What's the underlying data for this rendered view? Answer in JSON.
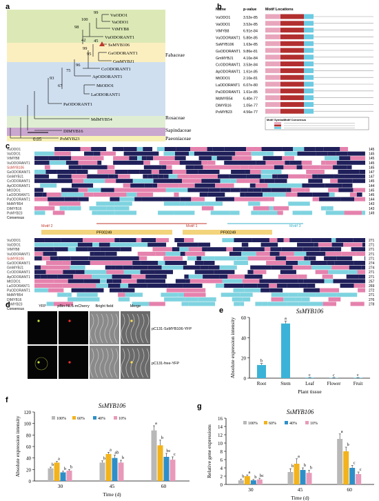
{
  "panels": {
    "a": "a",
    "b": "b",
    "c": "c",
    "d": "d",
    "e": "e",
    "f": "f",
    "g": "g"
  },
  "tree": {
    "leaves": [
      "VuODO1",
      "VaODO1",
      "VtMYB8",
      "VuODORANT1",
      "SsMYB106",
      "GsODORANT1",
      "GmMYBJ1",
      "CcODORANT1",
      "ApODORANT1",
      "MtODO1",
      "LaODORANT1",
      "PaODORANT1",
      "MdMYB54",
      "DIMYB16",
      "PoMYB23"
    ],
    "bootstrap": [
      "99",
      "100",
      "98",
      "42",
      "45",
      "99",
      "95",
      "96",
      "75",
      "93",
      "67"
    ],
    "families": [
      "Fabaceae",
      "Rosaceae",
      "Sapindaceae",
      "Paeoniaceae"
    ],
    "scale": "0.05",
    "colors": {
      "fabaceae_green": "#dce9b6",
      "fabaceae_yellow": "#fbefc0",
      "fabaceae_blue": "#cfdff0",
      "rosaceae": "#dfeed2",
      "sapindaceae": "#c9a7cf",
      "paeoniaceae": "#f7f1b6",
      "highlight": "#c0392b"
    }
  },
  "motifs": {
    "headers": [
      "Name",
      "p-value",
      "Motif Locations"
    ],
    "rows": [
      {
        "name": "VuODO1",
        "p": "3.52e-85"
      },
      {
        "name": "VaODO1",
        "p": "3.52e-85"
      },
      {
        "name": "VtMYB8",
        "p": "6.91e-84"
      },
      {
        "name": "VuODORANT1",
        "p": "5.80e-85"
      },
      {
        "name": "SsMYB106",
        "p": "1.63e-85"
      },
      {
        "name": "GsODORANT1",
        "p": "9.86e-81"
      },
      {
        "name": "GmMYBJ1",
        "p": "4.10e-84"
      },
      {
        "name": "CcODORANT1",
        "p": "3.53e-84"
      },
      {
        "name": "ApODORANT1",
        "p": "1.61e-85"
      },
      {
        "name": "MtODO1",
        "p": "2.10e-81"
      },
      {
        "name": "LaODORANT1",
        "p": "6.07e-80"
      },
      {
        "name": "PaODORANT1",
        "p": "1.61e-85"
      },
      {
        "name": "MdMYB54",
        "p": "6.40e-77"
      },
      {
        "name": "DIMYB16",
        "p": "1.05e-77"
      },
      {
        "name": "PoMYB23",
        "p": "4.56e-77"
      }
    ],
    "legend_headers": [
      "Motif",
      "Symbol",
      "Motif Consensus"
    ],
    "colors": {
      "motif1": "#e8a6bd",
      "motif2": "#b22f2f",
      "motif3": "#6ccbe3"
    }
  },
  "alignment": {
    "names": [
      "VuODO1",
      "VaODO1",
      "VtMYB8",
      "VuODORANT1",
      "SsMYB106",
      "GsODORANT1",
      "GmMYBJ1",
      "CcODORANT1",
      "ApODORANT1",
      "MtODO1",
      "LaODORANT1",
      "PaODORANT1",
      "MdMYB54",
      "DIMYB16",
      "PoMYB23",
      "Consensus"
    ],
    "numbers_top": [
      "145",
      "145",
      "145",
      "145",
      "145",
      "147",
      "147",
      "145",
      "144",
      "145",
      "145",
      "144",
      "143",
      "143",
      "149"
    ],
    "numbers_bottom": [
      "271",
      "271",
      "271",
      "271",
      "271",
      "274",
      "274",
      "271",
      "271",
      "257",
      "269",
      "272",
      "271",
      "276",
      "278"
    ],
    "labels_top": [
      "Motif 2",
      "Motif 1",
      "Motif 3"
    ],
    "labels_bottom": [
      "Motif 1",
      "Motif 2"
    ],
    "domains": [
      "PF00249",
      "PF00249"
    ],
    "colors": {
      "navy": "#1f1f5a",
      "pink": "#e582ad",
      "cyan": "#7fd3e0"
    }
  },
  "subcell": {
    "headers": [
      "YFP",
      "pBin-NLS-mCherry",
      "Bright field",
      "Merge"
    ],
    "rows": [
      "pC131-SsMYB106-YFP",
      "pC131-free-YFP"
    ]
  },
  "chart_e": {
    "title": "SsMYB106",
    "ylabel": "Absolute expression intensity",
    "xlabel": "Plant tissue"
  },
  "chart_f": {
    "title": "SsMYB106",
    "ylabel": "Absolute expression intensity",
    "xlabel": "Time (d)"
  },
  "chart_g": {
    "title": "SsMYB106",
    "ylabel": "Relative gene expressions",
    "xlabel": "Time (d)"
  },
  "chart_data": [
    {
      "type": "bar",
      "title": "SsMYB106",
      "xlabel": "Plant tissue",
      "ylabel": "Absolute expression intensity",
      "categories": [
        "Root",
        "Stem",
        "Leaf",
        "Flower",
        "Fruit"
      ],
      "values": [
        13,
        54,
        0.5,
        0.3,
        0.4
      ],
      "errors": [
        1.5,
        2.5,
        0.2,
        0.2,
        0.2
      ],
      "letters": [
        "b",
        "a",
        "c",
        "c",
        "c"
      ],
      "ylim": [
        0,
        60
      ],
      "yticks": [
        0,
        20,
        40,
        60
      ],
      "color": "#3bb3d8"
    },
    {
      "type": "bar",
      "title": "SsMYB106",
      "xlabel": "Time (d)",
      "ylabel": "Absolute expression intensity",
      "categories": [
        "30",
        "45",
        "60"
      ],
      "series": [
        {
          "name": "100%",
          "values": [
            22,
            32,
            88
          ],
          "letters": [
            "b",
            "b",
            "a"
          ],
          "errors": [
            2,
            3,
            8
          ]
        },
        {
          "name": "60%",
          "values": [
            32,
            47,
            62
          ],
          "letters": [
            "a",
            "a",
            "b"
          ],
          "errors": [
            2,
            3,
            9
          ]
        },
        {
          "name": "40%",
          "values": [
            15,
            40,
            42
          ],
          "letters": [
            "b",
            "ab",
            "bc"
          ],
          "errors": [
            2,
            5,
            6
          ]
        },
        {
          "name": "10%",
          "values": [
            18,
            32,
            37
          ],
          "letters": [
            "b",
            "b",
            "c"
          ],
          "errors": [
            2,
            4,
            5
          ]
        }
      ],
      "ylim": [
        0,
        120
      ],
      "yticks": [
        0,
        20,
        40,
        60,
        80,
        100,
        120
      ],
      "colors": [
        "#b8b8b8",
        "#f2b31c",
        "#2e8fc8",
        "#e89ab8"
      ]
    },
    {
      "type": "bar",
      "title": "SsMYB106",
      "xlabel": "Time (d)",
      "ylabel": "Relative gene expressions",
      "categories": [
        "30",
        "45",
        "60"
      ],
      "series": [
        {
          "name": "100%",
          "values": [
            1,
            3,
            11
          ],
          "letters": [
            "b",
            "b",
            "a"
          ],
          "errors": [
            0.3,
            0.8,
            1.2
          ]
        },
        {
          "name": "60%",
          "values": [
            2,
            5,
            8
          ],
          "letters": [
            "a",
            "a",
            "b"
          ],
          "errors": [
            0.3,
            1.2,
            1.0
          ]
        },
        {
          "name": "40%",
          "values": [
            1,
            3.5,
            4
          ],
          "letters": [
            "b",
            "b",
            "c"
          ],
          "errors": [
            0.2,
            0.5,
            0.6
          ]
        },
        {
          "name": "10%",
          "values": [
            1.2,
            2.8,
            2.5
          ],
          "letters": [
            "bc",
            "b",
            "c"
          ],
          "errors": [
            0.3,
            0.6,
            0.5
          ]
        }
      ],
      "ylim": [
        0,
        16
      ],
      "yticks": [
        0,
        2,
        4,
        6,
        8,
        10,
        12,
        14,
        16
      ],
      "colors": [
        "#b8b8b8",
        "#f2b31c",
        "#2e8fc8",
        "#e89ab8"
      ]
    }
  ]
}
